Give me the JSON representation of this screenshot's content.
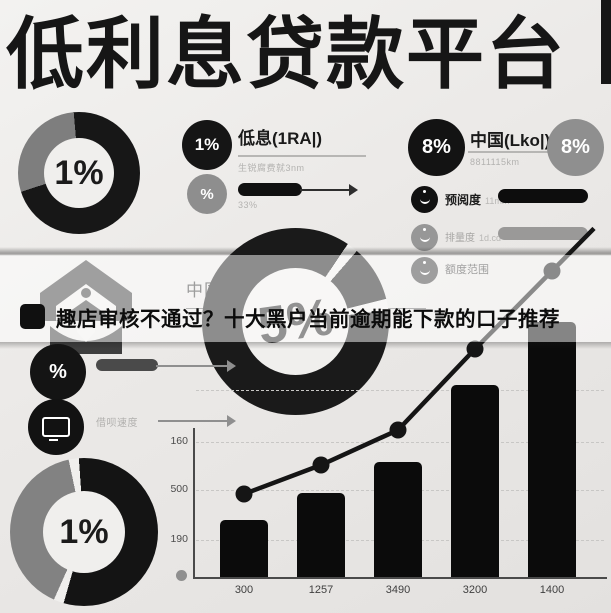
{
  "title": "低利息贷款平台",
  "headline": "趣店审核不通过？十大黑户当前逾期能下款的口子推荐",
  "donuts": {
    "top_left": {
      "value": "1%"
    },
    "center": {
      "value": "5%"
    },
    "bottom_left": {
      "value": "1%"
    }
  },
  "low_interest_block": {
    "badge": "1%",
    "title": "低息(1RA|)",
    "subtitle": "生锐腐费就3nm",
    "rate_badge": "%",
    "rate_note": "33%"
  },
  "china_block": {
    "left_badge": "8%",
    "title": "中国(Lko|)",
    "subtitle": "8811115km",
    "right_badge": "8%",
    "rows": [
      {
        "label": "预阅度",
        "sub": "11mm"
      },
      {
        "label": "排量度",
        "sub": "1d.cd"
      },
      {
        "label": "额度范围",
        "sub": ""
      }
    ]
  },
  "brand_block": {
    "label": "中国horps"
  },
  "left_metrics": {
    "percent_badge": "%",
    "speed_label": "借呗速度"
  },
  "icons": {
    "house-icon": "gray house with person bust",
    "monitor-icon": "white screen in black circle",
    "smiley-icon": "white smile mark in circle",
    "arrow-right-icon": "thin right arrow",
    "percent-icon": "%"
  },
  "colors": {
    "ink": "#131313",
    "gray": "#8f8f8f",
    "background": "#eceae8",
    "grid": "#c8c7c5",
    "band": "rgba(255,255,255,0.5)"
  },
  "chart_data": {
    "type": "bar",
    "title": "",
    "xlabel": "",
    "ylabel": "",
    "categories": [
      "300",
      "1257",
      "3490",
      "3200",
      "1400"
    ],
    "series": [
      {
        "name": "volume-bars",
        "type": "bar",
        "values": [
          57,
          84,
          115,
          192,
          255
        ]
      },
      {
        "name": "trend-line",
        "type": "line",
        "values": [
          83,
          112,
          147,
          228,
          306
        ]
      }
    ],
    "value_units": "pixels above x-axis (axis numerals partly illegible)",
    "y_tick_labels": [
      "160",
      "500",
      "190"
    ],
    "grid": "dashed-horizontal",
    "legend": "none",
    "line_extends_past_last_point": true
  }
}
